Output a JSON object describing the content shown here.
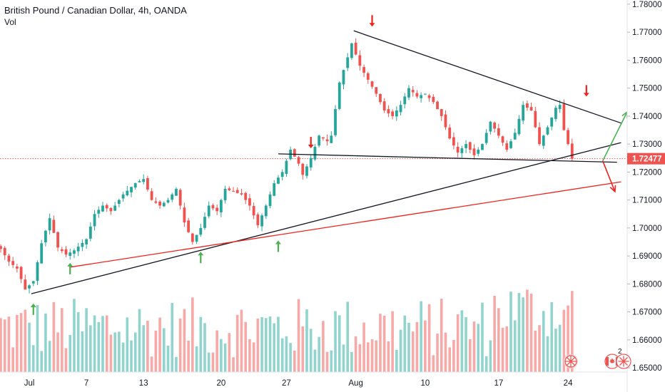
{
  "header": {
    "title": "British Pound / Canadian Dollar, 4h, OANDA",
    "volume_label": "Vol"
  },
  "colors": {
    "bull": "#26a69a",
    "bear": "#ef5350",
    "bull_volume": "#91d4ce",
    "bear_volume": "#f7a9a7",
    "price_line": "#ef5350",
    "trendline": "#131722",
    "red_trend": "#f0211c",
    "arrow_up": "#4caf50",
    "arrow_down": "#f0211c"
  },
  "footer": {
    "event_count": "2"
  },
  "chart_data": {
    "type": "candlestick",
    "title": "British Pound / Canadian Dollar, 4h, OANDA",
    "series_name": "Vol",
    "last_price": "1.72477",
    "y_axis": {
      "ylim": [
        1.6485,
        1.7815
      ],
      "ticks": [
        "1.78000",
        "1.77000",
        "1.76000",
        "1.75000",
        "1.74000",
        "1.73000",
        "1.72000",
        "1.71000",
        "1.70000",
        "1.69000",
        "1.68000",
        "1.67000",
        "1.66000",
        "1.65000"
      ]
    },
    "x_axis": {
      "range": [
        0,
        150
      ],
      "ticks": [
        {
          "label": "Jul",
          "x": 7
        },
        {
          "label": "7",
          "x": 21
        },
        {
          "label": "13",
          "x": 35
        },
        {
          "label": "20",
          "x": 54
        },
        {
          "label": "27",
          "x": 70
        },
        {
          "label": "Aug",
          "x": 87
        },
        {
          "label": "10",
          "x": 104
        },
        {
          "label": "17",
          "x": 122
        },
        {
          "label": "24",
          "x": 139
        }
      ]
    },
    "price_anchors": [
      [
        0,
        1.6925
      ],
      [
        2,
        1.688
      ],
      [
        4,
        1.6855
      ],
      [
        6,
        1.678
      ],
      [
        8,
        1.681
      ],
      [
        10,
        1.6945
      ],
      [
        12,
        1.7035
      ],
      [
        14,
        1.693
      ],
      [
        16,
        1.6905
      ],
      [
        18,
        1.692
      ],
      [
        21,
        1.696
      ],
      [
        23,
        1.705
      ],
      [
        25,
        1.708
      ],
      [
        27,
        1.706
      ],
      [
        30,
        1.712
      ],
      [
        33,
        1.716
      ],
      [
        35,
        1.7175
      ],
      [
        37,
        1.71
      ],
      [
        39,
        1.708
      ],
      [
        41,
        1.71
      ],
      [
        43,
        1.714
      ],
      [
        45,
        1.702
      ],
      [
        47,
        1.695
      ],
      [
        49,
        1.7
      ],
      [
        51,
        1.708
      ],
      [
        53,
        1.706
      ],
      [
        55,
        1.714
      ],
      [
        57,
        1.713
      ],
      [
        59,
        1.712
      ],
      [
        61,
        1.708
      ],
      [
        63,
        1.701
      ],
      [
        65,
        1.708
      ],
      [
        67,
        1.716
      ],
      [
        69,
        1.72
      ],
      [
        71,
        1.728
      ],
      [
        73,
        1.723
      ],
      [
        74,
        1.719
      ],
      [
        76,
        1.725
      ],
      [
        78,
        1.733
      ],
      [
        80,
        1.731
      ],
      [
        81,
        1.733
      ],
      [
        83,
        1.752
      ],
      [
        85,
        1.761
      ],
      [
        86,
        1.766
      ],
      [
        87,
        1.762
      ],
      [
        88,
        1.758
      ],
      [
        90,
        1.753
      ],
      [
        92,
        1.748
      ],
      [
        94,
        1.742
      ],
      [
        96,
        1.74
      ],
      [
        98,
        1.744
      ],
      [
        100,
        1.75
      ],
      [
        102,
        1.747
      ],
      [
        104,
        1.748
      ],
      [
        106,
        1.745
      ],
      [
        108,
        1.74
      ],
      [
        110,
        1.732
      ],
      [
        112,
        1.727
      ],
      [
        114,
        1.73
      ],
      [
        116,
        1.726
      ],
      [
        118,
        1.73
      ],
      [
        120,
        1.738
      ],
      [
        122,
        1.733
      ],
      [
        124,
        1.728
      ],
      [
        126,
        1.734
      ],
      [
        128,
        1.744
      ],
      [
        130,
        1.742
      ],
      [
        132,
        1.73
      ],
      [
        134,
        1.736
      ],
      [
        136,
        1.743
      ],
      [
        137,
        1.744
      ],
      [
        138,
        1.735
      ],
      [
        139,
        1.73
      ],
      [
        140,
        1.72477
      ]
    ],
    "annotations": {
      "trendlines": [
        {
          "name": "upper-trendline",
          "color": "trendline",
          "from": [
            86.5,
            1.7705
          ],
          "to": [
            152,
            1.7375
          ]
        },
        {
          "name": "lower-support-trendline",
          "color": "trendline",
          "from": [
            7.5,
            1.6765
          ],
          "to": [
            152,
            1.7305
          ]
        },
        {
          "name": "horizontal-neckline",
          "color": "trendline",
          "from": [
            68,
            1.7265
          ],
          "to": [
            151,
            1.7235
          ]
        },
        {
          "name": "red-trendline",
          "color": "red_trend",
          "from": [
            17,
            1.686
          ],
          "to": [
            152,
            1.7165
          ]
        }
      ],
      "arrows": [
        {
          "name": "green-up-arrow",
          "dir": "up",
          "x": 8,
          "tip": 1.673
        },
        {
          "name": "green-up-arrow",
          "dir": "up",
          "x": 17,
          "tip": 1.6875
        },
        {
          "name": "green-up-arrow",
          "dir": "up",
          "x": 49,
          "tip": 1.6915
        },
        {
          "name": "green-up-arrow",
          "dir": "up",
          "x": 68,
          "tip": 1.6955
        },
        {
          "name": "red-down-arrow",
          "dir": "down",
          "x": 76,
          "tip": 1.7285
        },
        {
          "name": "red-down-arrow",
          "dir": "down",
          "x": 91,
          "tip": 1.772
        },
        {
          "name": "red-down-arrow",
          "dir": "down",
          "x": 143.5,
          "tip": 1.747
        }
      ],
      "projection_arrows": [
        {
          "name": "green-projection-arrow",
          "color": "arrow_up",
          "from": [
            147.5,
            1.724
          ],
          "to": [
            153.5,
            1.7415
          ]
        },
        {
          "name": "red-projection-arrow",
          "color": "arrow_down",
          "from": [
            147.5,
            1.724
          ],
          "to": [
            150.5,
            1.713
          ]
        }
      ]
    }
  }
}
